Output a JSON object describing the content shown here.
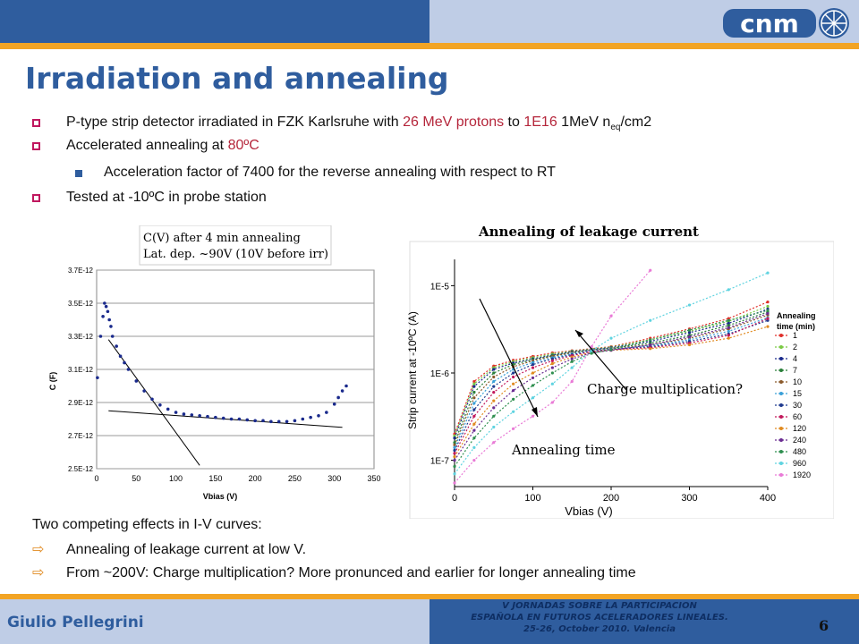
{
  "slide": {
    "title": "Irradiation and annealing",
    "logo_text": "cnm",
    "author": "Giulio Pellegrini",
    "conference": [
      "V JORNADAS SOBRE LA PARTICIPACION",
      "ESPAÑOLA EN FUTUROS ACELERADORES LINEALES.",
      "25-26, October 2010. Valencia"
    ],
    "page_number": "6",
    "colors": {
      "blue": "#2f5d9e",
      "light_blue": "#bfcde6",
      "orange": "#f2a424",
      "accent_red": "#b5263b"
    }
  },
  "bullets": {
    "b1_a": "P-type strip detector irradiated in FZK Karlsruhe with ",
    "b1_red1": "26 MeV protons",
    "b1_b": " to ",
    "b1_red2": "1E16",
    "b1_c": " 1MeV n",
    "b1_sub": "eq",
    "b1_d": "/cm2",
    "b2_a": "Accelerated annealing at ",
    "b2_red": "80ºC",
    "b2_sub1": "Acceleration factor of 7400 for the reverse annealing with respect to RT",
    "b3": "Tested at -10ºC in probe station"
  },
  "notes": {
    "intro": "Two competing effects in I-V curves:",
    "item1": "Annealing of leakage current at low V.",
    "item2": "From ~200V: Charge multiplication? More pronunced and earlier for longer annealing time"
  },
  "chart_data": [
    {
      "type": "scatter",
      "annotation_lines": [
        "C(V) after 4 min annealing",
        "Lat. dep. ~90V (10V before irr)"
      ],
      "xlabel": "Vbias (V)",
      "ylabel": "C (F)",
      "xlim": [
        0,
        350
      ],
      "ylim": [
        2.5e-12,
        3.7e-12
      ],
      "x_ticks": [
        "0",
        "50",
        "100",
        "150",
        "200",
        "250",
        "300",
        "350"
      ],
      "y_ticks": [
        "2.5E-12",
        "2.7E-12",
        "2.9E-12",
        "3.1E-12",
        "3.3E-12",
        "3.5E-12",
        "3.7E-12"
      ],
      "grid": true,
      "series": [
        {
          "color": "#1a2a8c",
          "x": [
            1,
            5,
            8,
            10,
            12,
            14,
            16,
            18,
            20,
            25,
            30,
            35,
            40,
            50,
            60,
            70,
            80,
            90,
            100,
            110,
            120,
            130,
            140,
            150,
            160,
            170,
            180,
            190,
            200,
            210,
            220,
            230,
            240,
            250,
            260,
            270,
            280,
            290,
            300,
            305,
            310,
            315
          ],
          "y": [
            3.05e-12,
            3.3e-12,
            3.42e-12,
            3.5e-12,
            3.48e-12,
            3.45e-12,
            3.4e-12,
            3.36e-12,
            3.3e-12,
            3.24e-12,
            3.18e-12,
            3.14e-12,
            3.1e-12,
            3.03e-12,
            2.97e-12,
            2.92e-12,
            2.885e-12,
            2.86e-12,
            2.84e-12,
            2.83e-12,
            2.825e-12,
            2.82e-12,
            2.815e-12,
            2.81e-12,
            2.805e-12,
            2.8e-12,
            2.8e-12,
            2.795e-12,
            2.79e-12,
            2.79e-12,
            2.785e-12,
            2.785e-12,
            2.785e-12,
            2.79e-12,
            2.8e-12,
            2.81e-12,
            2.82e-12,
            2.84e-12,
            2.89e-12,
            2.93e-12,
            2.97e-12,
            3e-12
          ]
        }
      ],
      "fit_lines": [
        {
          "x": [
            15,
            130
          ],
          "y": [
            3.28e-12,
            2.52e-12
          ]
        },
        {
          "x": [
            15,
            310
          ],
          "y": [
            2.85e-12,
            2.75e-12
          ]
        }
      ]
    },
    {
      "type": "line",
      "title": "Annealing of leakage current",
      "xlabel": "Vbias (V)",
      "ylabel": "Strip current at -10ºC (A)",
      "y_scale": "log",
      "xlim": [
        0,
        400
      ],
      "ylim": [
        5e-08,
        2e-05
      ],
      "x_ticks": [
        "0",
        "100",
        "200",
        "300",
        "400"
      ],
      "y_ticks": [
        "1E-7",
        "1E-6",
        "1E-5"
      ],
      "legend_title": [
        "Annealing",
        "time (min)"
      ],
      "legend_position": "right",
      "annotations": [
        "Charge multiplication?",
        "Annealing time"
      ],
      "x": [
        0,
        25,
        50,
        75,
        100,
        125,
        150,
        175,
        200,
        250,
        300,
        350,
        400
      ],
      "series": [
        {
          "name": "1",
          "color": "#e0302a",
          "values": [
            2e-07,
            8e-07,
            1.2e-06,
            1.4e-06,
            1.55e-06,
            1.7e-06,
            1.8e-06,
            1.9e-06,
            2e-06,
            2.5e-06,
            3.2e-06,
            4.2e-06,
            6.5e-06
          ]
        },
        {
          "name": "2",
          "color": "#7ac943",
          "values": [
            1.9e-07,
            7.5e-07,
            1.15e-06,
            1.35e-06,
            1.5e-06,
            1.65e-06,
            1.78e-06,
            1.88e-06,
            1.98e-06,
            2.4e-06,
            3e-06,
            3.9e-06,
            5.8e-06
          ]
        },
        {
          "name": "4",
          "color": "#1a2a8c",
          "values": [
            1.8e-07,
            7e-07,
            1.1e-06,
            1.3e-06,
            1.45e-06,
            1.6e-06,
            1.75e-06,
            1.86e-06,
            1.95e-06,
            2.3e-06,
            2.9e-06,
            3.7e-06,
            5.4e-06
          ]
        },
        {
          "name": "7",
          "color": "#2a7f3a",
          "values": [
            1.6e-07,
            6e-07,
            1e-06,
            1.25e-06,
            1.42e-06,
            1.58e-06,
            1.72e-06,
            1.84e-06,
            1.92e-06,
            2.2e-06,
            2.7e-06,
            3.5e-06,
            5e-06
          ]
        },
        {
          "name": "10",
          "color": "#8b5a2b",
          "values": [
            1.5e-07,
            5.2e-07,
            9e-07,
            1.18e-06,
            1.38e-06,
            1.55e-06,
            1.7e-06,
            1.82e-06,
            1.9e-06,
            2.1e-06,
            2.5e-06,
            3.2e-06,
            4.6e-06
          ]
        },
        {
          "name": "15",
          "color": "#3aa0d8",
          "values": [
            1.4e-07,
            4.5e-07,
            8e-07,
            1.1e-06,
            1.32e-06,
            1.5e-06,
            1.66e-06,
            1.8e-06,
            1.88e-06,
            2.05e-06,
            2.4e-06,
            3e-06,
            4.3e-06
          ]
        },
        {
          "name": "30",
          "color": "#1f3a8f",
          "values": [
            1.3e-07,
            3.8e-07,
            7e-07,
            1e-06,
            1.25e-06,
            1.45e-06,
            1.62e-06,
            1.78e-06,
            1.86e-06,
            2e-06,
            2.3e-06,
            2.8e-06,
            4e-06
          ]
        },
        {
          "name": "60",
          "color": "#c2185b",
          "values": [
            1.2e-07,
            3.2e-07,
            6e-07,
            9e-07,
            1.15e-06,
            1.38e-06,
            1.58e-06,
            1.76e-06,
            1.85e-06,
            1.95e-06,
            2.2e-06,
            2.7e-06,
            4.2e-06
          ]
        },
        {
          "name": "120",
          "color": "#e08a20",
          "values": [
            1.1e-07,
            2.6e-07,
            4.8e-07,
            7.5e-07,
            1e-06,
            1.28e-06,
            1.52e-06,
            1.72e-06,
            1.82e-06,
            1.9e-06,
            2.1e-06,
            2.5e-06,
            3.4e-06
          ]
        },
        {
          "name": "240",
          "color": "#6a2c91",
          "values": [
            1e-07,
            2.2e-07,
            4e-07,
            6.3e-07,
            8.8e-07,
            1.15e-06,
            1.45e-06,
            1.7e-06,
            1.82e-06,
            2.1e-06,
            2.6e-06,
            3.3e-06,
            4.8e-06
          ]
        },
        {
          "name": "480",
          "color": "#2f8f4f",
          "values": [
            8.5e-08,
            1.8e-07,
            3.2e-07,
            5e-07,
            7.2e-07,
            1e-06,
            1.35e-06,
            1.68e-06,
            1.85e-06,
            2.4e-06,
            3.1e-06,
            4e-06,
            5.2e-06
          ]
        },
        {
          "name": "960",
          "color": "#5fd3e0",
          "values": [
            7e-08,
            1.4e-07,
            2.4e-07,
            3.6e-07,
            5.2e-07,
            7.5e-07,
            1.15e-06,
            1.8e-06,
            2.5e-06,
            4e-06,
            6e-06,
            9e-06,
            1.4e-05
          ]
        },
        {
          "name": "1920",
          "color": "#e97ad6",
          "values": [
            5.5e-08,
            1e-07,
            1.6e-07,
            2.3e-07,
            3.2e-07,
            4.6e-07,
            8e-07,
            2e-06,
            4.5e-06,
            1.5e-05,
            null,
            null,
            null
          ]
        }
      ]
    }
  ]
}
